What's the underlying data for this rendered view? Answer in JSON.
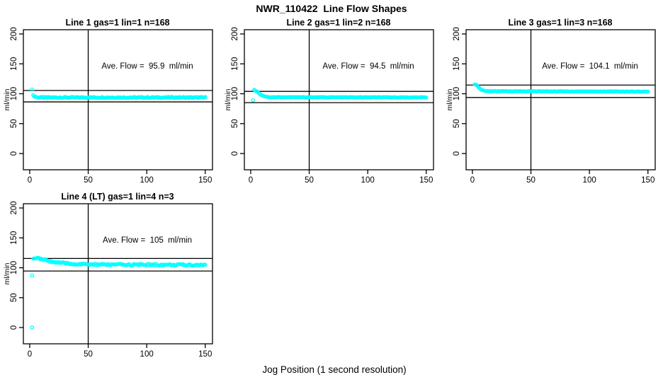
{
  "figure": {
    "title": "NWR_110422  Line Flow Shapes",
    "xlabel": "Jog Position (1 second resolution)",
    "background": "#FFFFFF",
    "axis_color": "#000000",
    "marker_color": "#00FFFF"
  },
  "chart_data": [
    {
      "type": "scatter",
      "title": "Line 1 gas=1 lin=1 n=168",
      "annotation": "Ave. Flow =  95.9  ml/min",
      "ave_flow": 95.9,
      "ylabel": "ml/min",
      "x_ticks": [
        0,
        50,
        100,
        150
      ],
      "y_ticks": [
        0,
        50,
        100,
        150,
        200
      ],
      "xlim": [
        -5.4,
        156.2
      ],
      "ylim": [
        -27.2,
        207.1
      ],
      "vline_x": 50,
      "hlines": [
        105.5,
        86.3
      ],
      "marker_color": "#00FFFF",
      "open_points": [
        [
          2,
          107
        ]
      ],
      "band": {
        "x_from": 3,
        "x_to": 150,
        "x_step": 1,
        "noise": 0.9,
        "control": [
          [
            3,
            97.5
          ],
          [
            4,
            95.5
          ],
          [
            6,
            94.2
          ],
          [
            10,
            93.8
          ],
          [
            150,
            93.8
          ]
        ]
      }
    },
    {
      "type": "scatter",
      "title": "Line 2 gas=1 lin=2 n=168",
      "annotation": "Ave. Flow =  94.5  ml/min",
      "ave_flow": 94.5,
      "ylabel": "ml/min",
      "x_ticks": [
        0,
        50,
        100,
        150
      ],
      "y_ticks": [
        0,
        50,
        100,
        150,
        200
      ],
      "xlim": [
        -5.4,
        156.2
      ],
      "ylim": [
        -27.2,
        207.1
      ],
      "vline_x": 50,
      "hlines": [
        103.9,
        85.1
      ],
      "marker_color": "#00FFFF",
      "open_points": [
        [
          2,
          89
        ]
      ],
      "band": {
        "x_from": 3,
        "x_to": 150,
        "x_step": 1,
        "noise": 0.45,
        "control": [
          [
            3,
            106
          ],
          [
            5,
            104.5
          ],
          [
            7,
            101
          ],
          [
            9,
            98
          ],
          [
            12,
            95.5
          ],
          [
            16,
            94.3
          ],
          [
            150,
            93.9
          ]
        ]
      }
    },
    {
      "type": "scatter",
      "title": "Line 3 gas=1 lin=3 n=168",
      "annotation": "Ave. Flow =  104.1  ml/min",
      "ave_flow": 104.1,
      "ylabel": "ml/min",
      "x_ticks": [
        0,
        50,
        100,
        150
      ],
      "y_ticks": [
        0,
        50,
        100,
        150,
        200
      ],
      "xlim": [
        -5.4,
        156.2
      ],
      "ylim": [
        -27.2,
        207.1
      ],
      "vline_x": 50,
      "hlines": [
        114.5,
        93.7
      ],
      "marker_color": "#00FFFF",
      "open_points": [],
      "band": {
        "x_from": 2,
        "x_to": 150,
        "x_step": 1,
        "noise": 0.45,
        "control": [
          [
            2,
            116
          ],
          [
            4,
            114
          ],
          [
            6,
            109
          ],
          [
            8,
            106
          ],
          [
            12,
            104.3
          ],
          [
            150,
            103.6
          ]
        ]
      }
    },
    {
      "type": "scatter",
      "title": "Line 4 (LT) gas=1 lin=4 n=3",
      "annotation": "Ave. Flow =  105  ml/min",
      "ave_flow": 105,
      "ylabel": "ml/min",
      "x_ticks": [
        0,
        50,
        100,
        150
      ],
      "y_ticks": [
        0,
        50,
        100,
        150,
        200
      ],
      "xlim": [
        -5.4,
        156.2
      ],
      "ylim": [
        -27.2,
        207.1
      ],
      "vline_x": 50,
      "hlines": [
        115.5,
        94.5
      ],
      "marker_color": "#00FFFF",
      "open_points": [
        [
          2,
          0
        ],
        [
          2,
          87
        ]
      ],
      "band": {
        "x_from": 3,
        "x_to": 150,
        "x_step": 1,
        "noise": 1.5,
        "control": [
          [
            3,
            116
          ],
          [
            6,
            116
          ],
          [
            10,
            114.5
          ],
          [
            15,
            112
          ],
          [
            20,
            110
          ],
          [
            27,
            108
          ],
          [
            35,
            106.5
          ],
          [
            50,
            105.5
          ],
          [
            70,
            105.2
          ],
          [
            150,
            104.6
          ]
        ]
      }
    }
  ]
}
